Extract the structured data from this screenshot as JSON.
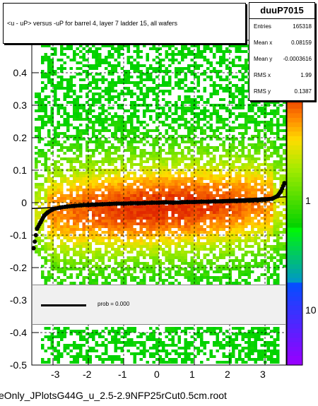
{
  "chart_data": {
    "type": "heatmap",
    "title": "<u - uP>       versus  -uP for barrel 4, layer 7 ladder 15, all  wafers",
    "xlim": [
      -3.6,
      3.6
    ],
    "ylim": [
      -0.5,
      0.5
    ],
    "x_ticks": [
      "-3",
      "-2",
      "-1",
      "0",
      "1",
      "2",
      "3"
    ],
    "y_ticks": [
      "0.4",
      "0.3",
      "0.2",
      "0.1",
      "0",
      "-0.1",
      "-0.2",
      "-0.3",
      "-0.4",
      "-0.5"
    ],
    "z_scale": "log",
    "z_ticks": [
      "1",
      "10"
    ],
    "profile_points": [
      {
        "x": -3.55,
        "y": -0.14
      },
      {
        "x": -3.45,
        "y": -0.08
      },
      {
        "x": -3.35,
        "y": -0.06
      },
      {
        "x": -3.25,
        "y": -0.04
      },
      {
        "x": -3.15,
        "y": -0.03
      },
      {
        "x": -3.0,
        "y": -0.02
      },
      {
        "x": -2.8,
        "y": -0.015
      },
      {
        "x": -2.6,
        "y": -0.012
      },
      {
        "x": -2.4,
        "y": -0.01
      },
      {
        "x": -2.2,
        "y": -0.008
      },
      {
        "x": -2.0,
        "y": -0.007
      },
      {
        "x": -1.8,
        "y": -0.006
      },
      {
        "x": -1.6,
        "y": -0.005
      },
      {
        "x": -1.4,
        "y": -0.004
      },
      {
        "x": -1.2,
        "y": -0.003
      },
      {
        "x": -1.0,
        "y": -0.003
      },
      {
        "x": -0.8,
        "y": -0.002
      },
      {
        "x": -0.6,
        "y": -0.002
      },
      {
        "x": -0.4,
        "y": -0.001
      },
      {
        "x": -0.2,
        "y": 0.0
      },
      {
        "x": 0.0,
        "y": 0.0
      },
      {
        "x": 0.2,
        "y": 0.001
      },
      {
        "x": 0.4,
        "y": 0.0
      },
      {
        "x": 0.6,
        "y": 0.001
      },
      {
        "x": 0.8,
        "y": 0.002
      },
      {
        "x": 1.0,
        "y": 0.002
      },
      {
        "x": 1.2,
        "y": 0.003
      },
      {
        "x": 1.4,
        "y": 0.003
      },
      {
        "x": 1.6,
        "y": 0.004
      },
      {
        "x": 1.8,
        "y": 0.004
      },
      {
        "x": 2.0,
        "y": 0.005
      },
      {
        "x": 2.2,
        "y": 0.005
      },
      {
        "x": 2.4,
        "y": 0.006
      },
      {
        "x": 2.6,
        "y": 0.007
      },
      {
        "x": 2.8,
        "y": 0.008
      },
      {
        "x": 3.0,
        "y": 0.009
      },
      {
        "x": 3.2,
        "y": 0.012
      },
      {
        "x": 3.35,
        "y": 0.02
      },
      {
        "x": 3.45,
        "y": 0.035
      },
      {
        "x": 3.55,
        "y": 0.06
      }
    ],
    "fit_line": {
      "x": [
        -3.6,
        3.6
      ],
      "y": [
        -0.018,
        0.018
      ]
    }
  },
  "stats": {
    "name": "duuP7015",
    "rows": [
      {
        "key": "Entries",
        "value": "165318"
      },
      {
        "key": "Mean x",
        "value": "0.08159"
      },
      {
        "key": "Mean y",
        "value": "-0.0003616"
      },
      {
        "key": "RMS x",
        "value": "1.99"
      },
      {
        "key": "RMS y",
        "value": "0.1387"
      }
    ]
  },
  "fit": {
    "label": "prob = 0.000"
  },
  "footer": "eOnly_JPlotsG44G_u_2.5-2.9NFP25rCut0.5cm.root"
}
